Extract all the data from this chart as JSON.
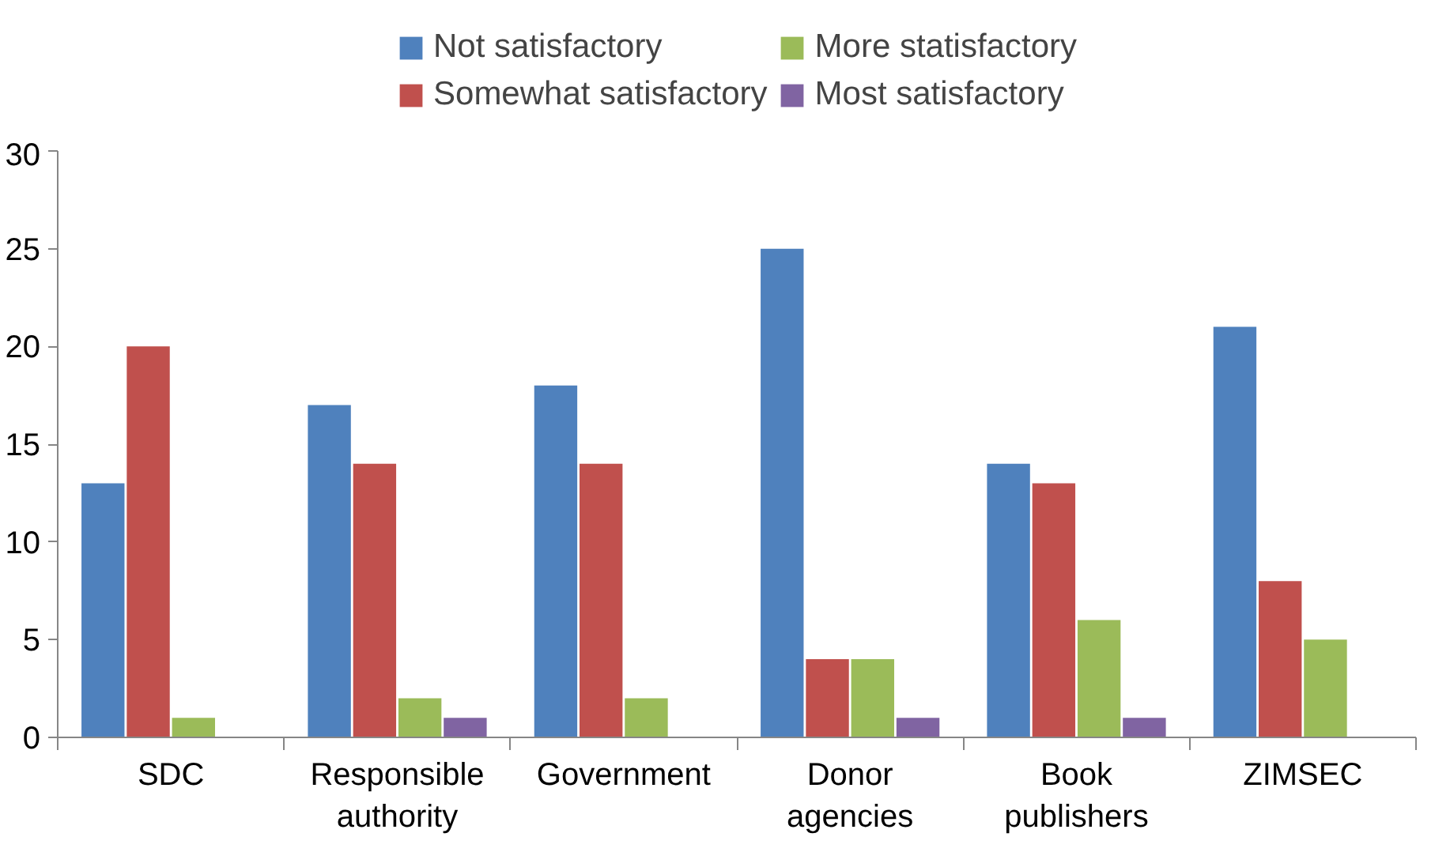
{
  "chart_data": {
    "type": "bar",
    "categories": [
      "SDC",
      "Responsible authority",
      "Government",
      "Donor agencies",
      "Book publishers",
      "ZIMSEC"
    ],
    "series": [
      {
        "name": "Not satisfactory",
        "color": "#4f81bd",
        "values": [
          13,
          17,
          18,
          25,
          14,
          21
        ]
      },
      {
        "name": "Somewhat satisfactory",
        "color": "#c0504d",
        "values": [
          20,
          14,
          14,
          4,
          13,
          8
        ]
      },
      {
        "name": "More statisfactory",
        "color": "#9bbb59",
        "values": [
          1,
          2,
          2,
          4,
          6,
          5
        ]
      },
      {
        "name": "Most satisfactory",
        "color": "#8064a2",
        "values": [
          0,
          1,
          0,
          1,
          1,
          0
        ]
      }
    ],
    "ylim": [
      0,
      30
    ],
    "yticks": [
      0,
      5,
      10,
      15,
      20,
      25,
      30
    ],
    "grid": false,
    "legend": "top"
  }
}
